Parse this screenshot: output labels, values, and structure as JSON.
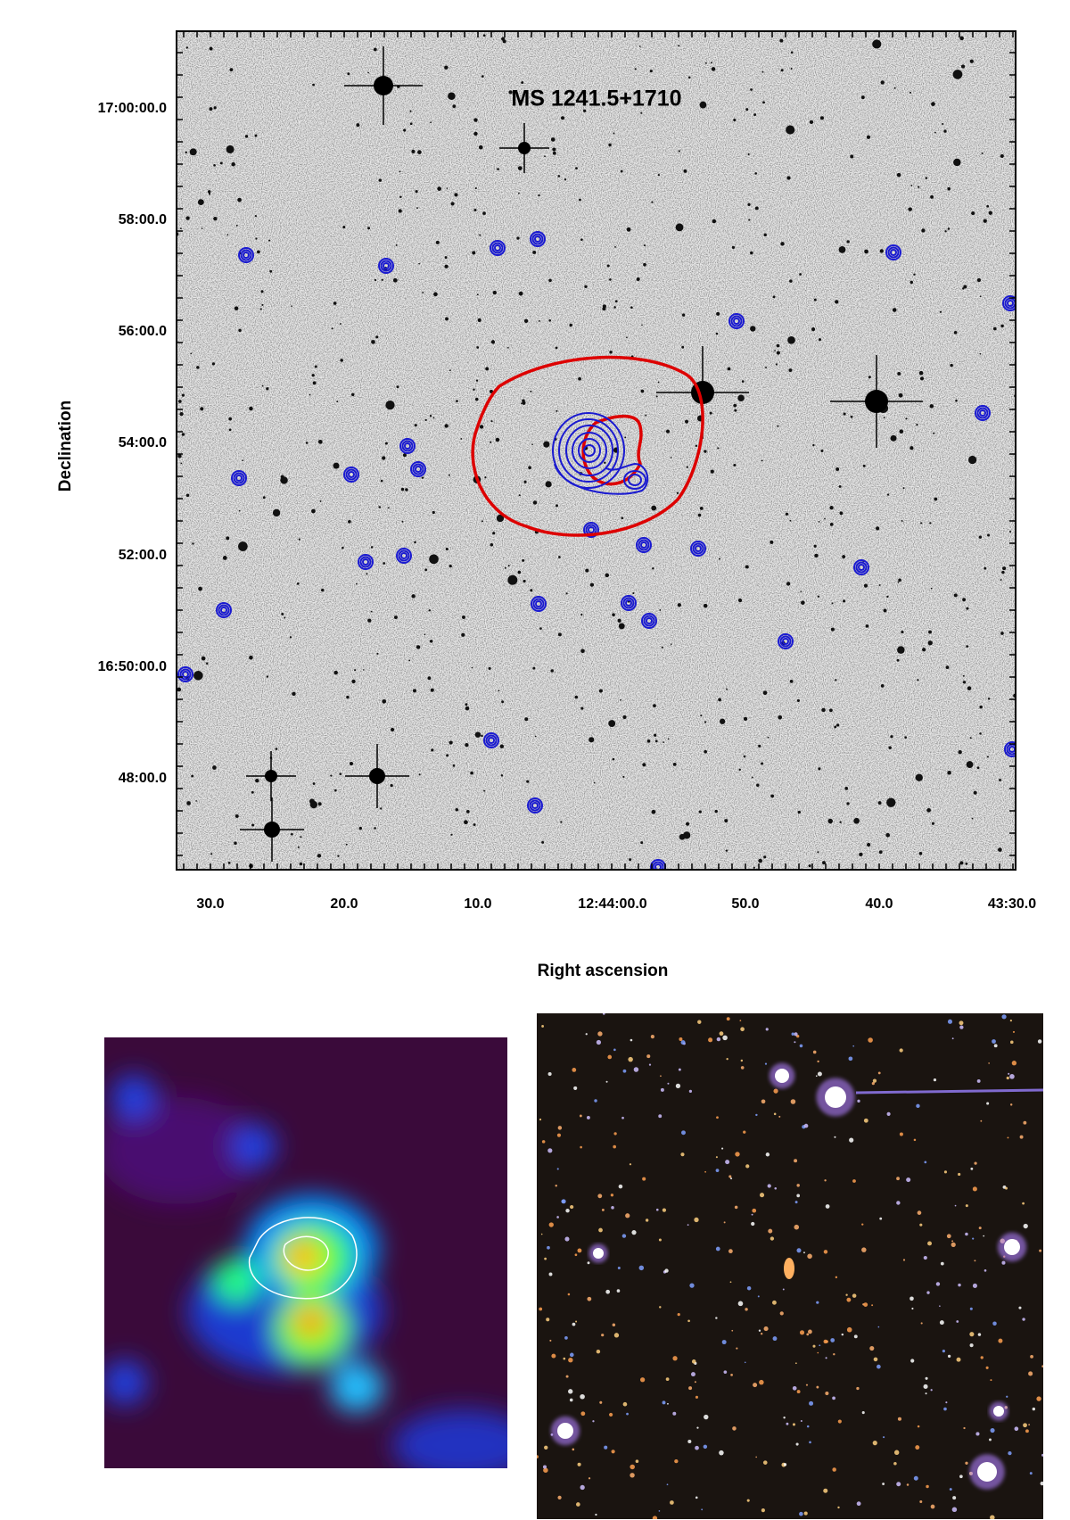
{
  "title": "MS 1241.5+1710",
  "axes": {
    "x_label": "Right ascension",
    "y_label": "Declination",
    "x_ticks": [
      "30.0",
      "20.0",
      "10.0",
      "12:44:00.0",
      "50.0",
      "40.0",
      "43:30.0"
    ],
    "y_ticks": [
      "17:00:00.0",
      "58:00.0",
      "56:00.0",
      "54:00.0",
      "52:00.0",
      "16:50:00.0",
      "48:00.0"
    ]
  }
}
